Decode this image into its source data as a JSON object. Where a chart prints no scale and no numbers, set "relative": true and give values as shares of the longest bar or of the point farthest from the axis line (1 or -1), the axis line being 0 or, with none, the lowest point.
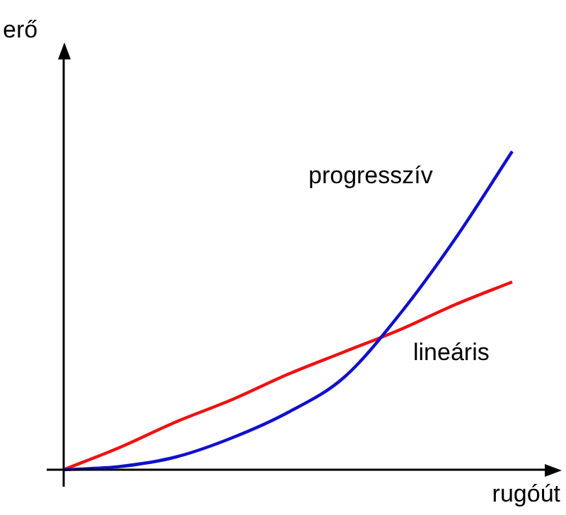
{
  "chart_data": {
    "type": "line",
    "relative": true,
    "xlabel": "rugóút",
    "ylabel": "erő",
    "categories": [
      null,
      null,
      null,
      null,
      null,
      null,
      null,
      null,
      null
    ],
    "legend": false,
    "marker": "none",
    "series": [
      {
        "name": "progresszív",
        "color": "#1010cc",
        "values": [
          0,
          0.01,
          0.04,
          0.1,
          0.18,
          0.29,
          0.49,
          0.73,
          1
        ]
      },
      {
        "name": "lineáris",
        "color": "#ee1111",
        "values": [
          0,
          0.07,
          0.15,
          0.22,
          0.3,
          0.37,
          0.44,
          0.52,
          0.59
        ]
      }
    ]
  }
}
